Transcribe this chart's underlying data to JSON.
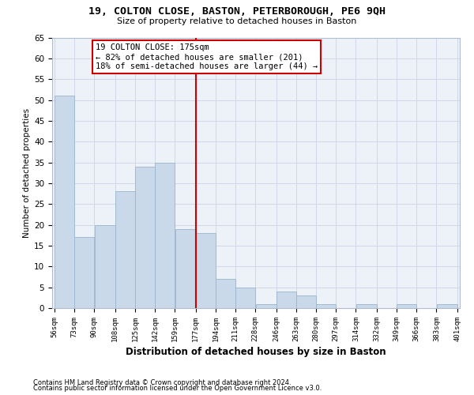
{
  "title1": "19, COLTON CLOSE, BASTON, PETERBOROUGH, PE6 9QH",
  "title2": "Size of property relative to detached houses in Baston",
  "xlabel": "Distribution of detached houses by size in Baston",
  "ylabel": "Number of detached properties",
  "footnote1": "Contains HM Land Registry data © Crown copyright and database right 2024.",
  "footnote2": "Contains public sector information licensed under the Open Government Licence v3.0.",
  "annotation_title": "19 COLTON CLOSE: 175sqm",
  "annotation_line1": "← 82% of detached houses are smaller (201)",
  "annotation_line2": "18% of semi-detached houses are larger (44) →",
  "bar_left_edges": [
    56,
    73,
    90,
    108,
    125,
    142,
    159,
    177,
    194,
    211,
    228,
    246,
    263,
    280,
    297,
    314,
    332,
    349,
    366,
    383
  ],
  "bar_widths": [
    17,
    17,
    18,
    17,
    17,
    17,
    18,
    17,
    17,
    17,
    18,
    17,
    17,
    17,
    17,
    18,
    17,
    17,
    17,
    18
  ],
  "bar_heights": [
    51,
    17,
    20,
    28,
    34,
    35,
    19,
    18,
    7,
    5,
    1,
    4,
    3,
    1,
    0,
    1,
    0,
    1,
    0,
    1
  ],
  "tick_labels": [
    "56sqm",
    "73sqm",
    "90sqm",
    "108sqm",
    "125sqm",
    "142sqm",
    "159sqm",
    "177sqm",
    "194sqm",
    "211sqm",
    "228sqm",
    "246sqm",
    "263sqm",
    "280sqm",
    "297sqm",
    "314sqm",
    "332sqm",
    "349sqm",
    "366sqm",
    "383sqm",
    "401sqm"
  ],
  "bar_color": "#c9d9ea",
  "bar_edge_color": "#9ab4cc",
  "vline_x": 177,
  "vline_color": "#cc0000",
  "bg_color": "#edf1f8",
  "grid_color": "#d0d8e8",
  "annotation_box_color": "#cc0000",
  "ylim": [
    0,
    65
  ],
  "yticks": [
    0,
    5,
    10,
    15,
    20,
    25,
    30,
    35,
    40,
    45,
    50,
    55,
    60,
    65
  ],
  "xlim_left": 54,
  "xlim_right": 403
}
